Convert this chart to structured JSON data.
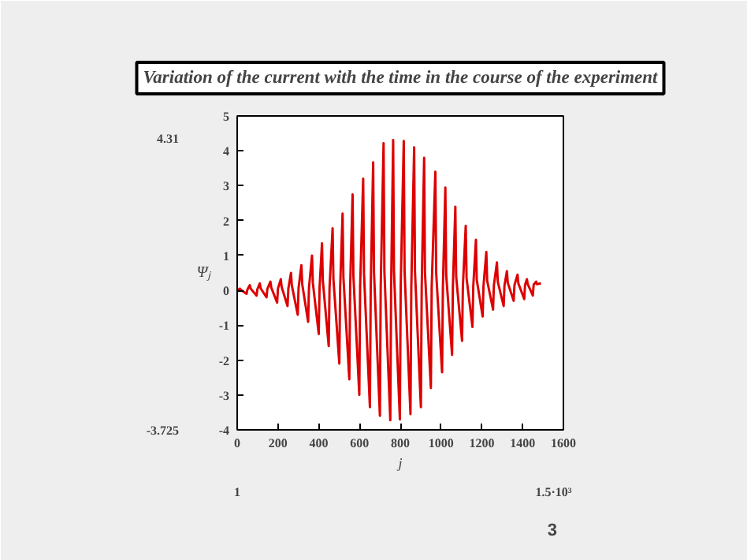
{
  "chart_data": {
    "type": "line",
    "title": "Variation of the current with the time in the course of the experiment",
    "xlabel": "j",
    "ylabel": "Ψⱼ",
    "xlim": [
      0,
      1600
    ],
    "ylim": [
      -4,
      5
    ],
    "xticks": [
      0,
      200,
      400,
      600,
      800,
      1000,
      1200,
      1400,
      1600
    ],
    "yticks": [
      -4,
      -3,
      -2,
      -1,
      0,
      1,
      2,
      3,
      4,
      5
    ],
    "grid": false,
    "marker": "none",
    "line_style": "solid",
    "annotations": [
      "4.31",
      "-3.725",
      "1",
      "1.5·10³",
      "3"
    ],
    "series": [
      {
        "color": "#dd0000",
        "x": [
          0,
          13,
          17,
          46,
          50,
          62,
          66,
          95,
          99,
          111,
          115,
          144,
          148,
          163,
          167,
          196,
          200,
          214,
          218,
          247,
          251,
          264,
          268,
          297,
          301,
          315,
          319,
          348,
          352,
          367,
          371,
          400,
          404,
          416,
          420,
          449,
          453,
          468,
          472,
          501,
          505,
          517,
          521,
          550,
          554,
          566,
          570,
          599,
          603,
          618,
          622,
          651,
          655,
          667,
          671,
          700,
          704,
          718,
          722,
          751,
          755,
          765,
          769,
          798,
          802,
          817,
          821,
          850,
          854,
          868,
          872,
          901,
          905,
          917,
          921,
          950,
          954,
          972,
          976,
          1005,
          1009,
          1021,
          1025,
          1054,
          1058,
          1070,
          1074,
          1103,
          1107,
          1121,
          1125,
          1154,
          1158,
          1171,
          1175,
          1204,
          1208,
          1222,
          1226,
          1255,
          1259,
          1274,
          1278,
          1307,
          1311,
          1323,
          1327,
          1356,
          1360,
          1375,
          1379,
          1408,
          1412,
          1421,
          1425,
          1450,
          1454,
          1466,
          1470,
          1490
        ],
        "values": [
          0,
          0.05,
          0.02,
          -0.1,
          0.02,
          0.15,
          0.05,
          -0.15,
          0.03,
          0.2,
          0.06,
          -0.2,
          0.04,
          0.25,
          0.08,
          -0.35,
          0.05,
          0.32,
          0.1,
          -0.45,
          0.05,
          0.5,
          0.14,
          -0.7,
          0.06,
          0.72,
          0.18,
          -0.9,
          0.06,
          1.0,
          0.22,
          -1.25,
          0.07,
          1.35,
          0.28,
          -1.6,
          0.08,
          1.78,
          0.32,
          -2.1,
          0.08,
          2.2,
          0.38,
          -2.55,
          0.09,
          2.75,
          0.42,
          -3.0,
          0.1,
          3.2,
          0.48,
          -3.35,
          0.1,
          3.67,
          0.52,
          -3.6,
          0.1,
          4.22,
          0.55,
          -3.725,
          0.1,
          4.31,
          0.55,
          -3.7,
          0.1,
          4.28,
          0.55,
          -3.55,
          0.1,
          4.1,
          0.55,
          -3.35,
          0.1,
          3.8,
          0.52,
          -2.8,
          0.1,
          3.4,
          0.5,
          -2.35,
          0.1,
          2.95,
          0.45,
          -1.85,
          0.1,
          2.4,
          0.4,
          -1.45,
          0.12,
          1.85,
          0.35,
          -1.05,
          0.12,
          1.45,
          0.3,
          -0.75,
          0.12,
          1.1,
          0.28,
          -0.55,
          0.14,
          0.8,
          0.25,
          -0.45,
          0.14,
          0.55,
          0.22,
          -0.3,
          0.15,
          0.45,
          0.2,
          -0.25,
          0.16,
          0.32,
          0.18,
          -0.15,
          0.16,
          0.25,
          0.18,
          0.2
        ]
      }
    ]
  }
}
